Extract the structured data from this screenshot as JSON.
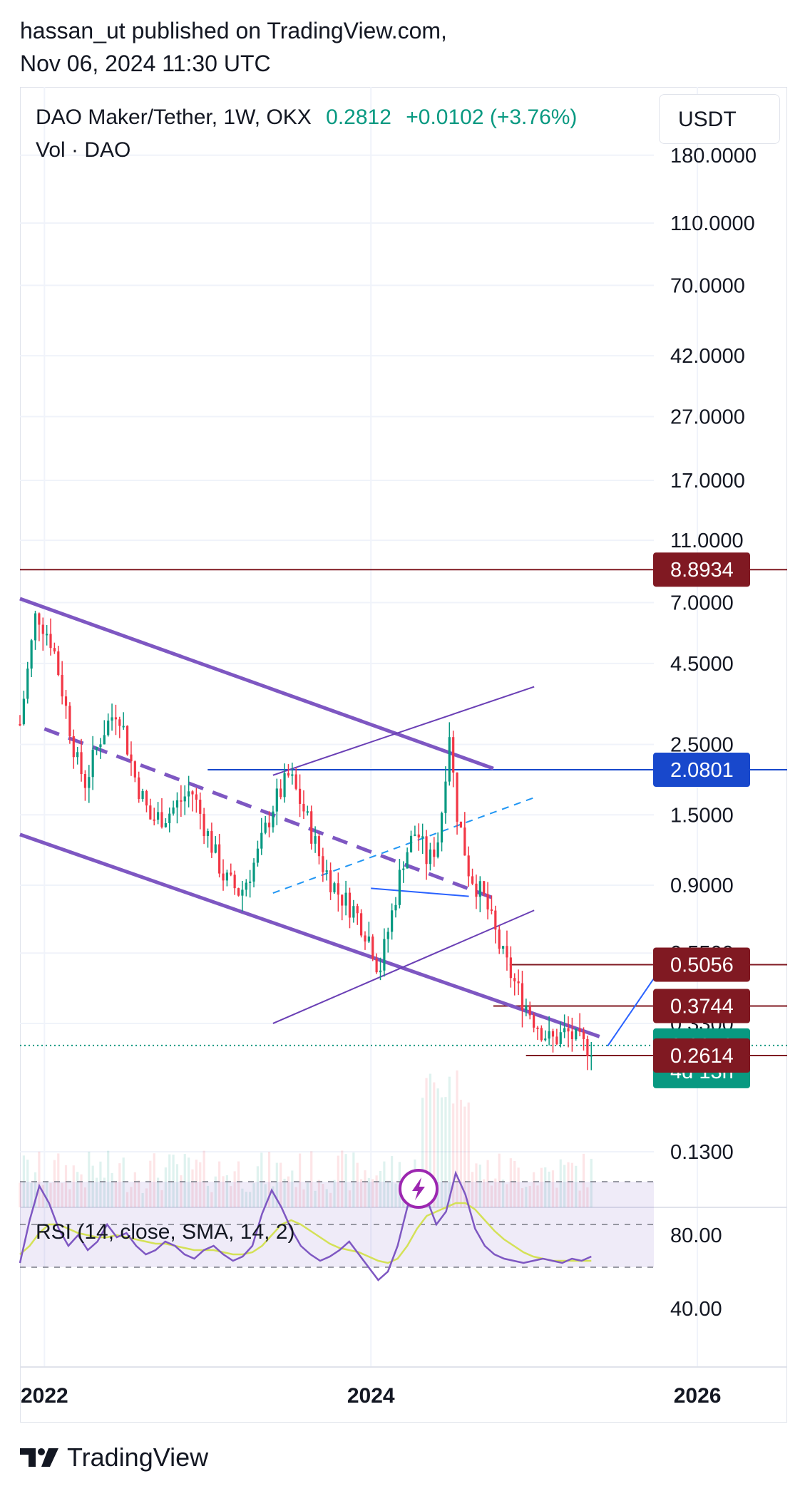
{
  "publisher": {
    "line1": "hassan_ut published on TradingView.com,",
    "line2": "Nov 06, 2024 11:30 UTC"
  },
  "legend": {
    "symbol": "DAO Maker/Tether, 1W, OKX",
    "price": "0.2812",
    "change": "+0.0102 (+3.76%)",
    "vol": "Vol · DAO"
  },
  "currency_button": "USDT",
  "rsi": {
    "title": "RSI (14, close, SMA, 14, 2)"
  },
  "footer": {
    "brand": "TradingView"
  },
  "colors": {
    "up": "#089981",
    "down": "#f23645",
    "resistance": "#801922",
    "support_blue": "#1848cc",
    "channel": "#7e57c2",
    "rsi_line": "#7e57c2",
    "rsi_sma": "#d4e157"
  },
  "icons": [
    "tradingview-logo-icon",
    "lightning-icon"
  ],
  "chart_data": {
    "type": "candlestick",
    "title": "DAO Maker/Tether, 1W, OKX",
    "scale": "log",
    "y_ticks": [
      "180.0000",
      "110.0000",
      "70.0000",
      "42.0000",
      "27.0000",
      "17.0000",
      "11.0000",
      "7.0000",
      "4.5000",
      "2.5000",
      "1.5000",
      "0.9000",
      "0.5500",
      "0.3300",
      "0.1300"
    ],
    "x_ticks": [
      "2022",
      "2024",
      "2026"
    ],
    "x_range": [
      2021.85,
      2026.55
    ],
    "price_labels": [
      {
        "value": "8.8934",
        "kind": "resistance"
      },
      {
        "value": "2.0801",
        "kind": "support"
      },
      {
        "value": "0.5056",
        "kind": "resistance"
      },
      {
        "value": "0.3744",
        "kind": "resistance"
      },
      {
        "value": "0.2812",
        "kind": "last",
        "countdown": "4d 13h"
      },
      {
        "value": "0.2614",
        "kind": "resistance"
      }
    ],
    "price_path": [
      [
        2021.85,
        2.9
      ],
      [
        2021.95,
        6.6
      ],
      [
        2022.05,
        5.2
      ],
      [
        2022.1,
        3.9
      ],
      [
        2022.2,
        2.2
      ],
      [
        2022.25,
        1.9
      ],
      [
        2022.35,
        2.7
      ],
      [
        2022.45,
        3.3
      ],
      [
        2022.55,
        2.0
      ],
      [
        2022.65,
        1.45
      ],
      [
        2022.75,
        1.5
      ],
      [
        2022.9,
        1.8
      ],
      [
        2023.0,
        1.3
      ],
      [
        2023.1,
        0.95
      ],
      [
        2023.2,
        0.85
      ],
      [
        2023.3,
        1.1
      ],
      [
        2023.4,
        1.6
      ],
      [
        2023.5,
        2.0
      ],
      [
        2023.6,
        1.5
      ],
      [
        2023.7,
        1.05
      ],
      [
        2023.8,
        0.85
      ],
      [
        2023.9,
        0.75
      ],
      [
        2024.0,
        0.6
      ],
      [
        2024.05,
        0.48
      ],
      [
        2024.12,
        0.7
      ],
      [
        2024.2,
        1.1
      ],
      [
        2024.28,
        1.35
      ],
      [
        2024.35,
        1.05
      ],
      [
        2024.42,
        1.3
      ],
      [
        2024.48,
        2.8
      ],
      [
        2024.52,
        1.6
      ],
      [
        2024.6,
        1.0
      ],
      [
        2024.7,
        0.8
      ],
      [
        2024.8,
        0.55
      ],
      [
        2024.9,
        0.42
      ],
      [
        2025.0,
        0.34
      ],
      [
        2025.1,
        0.29
      ],
      [
        2025.2,
        0.31
      ],
      [
        2025.3,
        0.28
      ],
      [
        2025.35,
        0.2812
      ]
    ],
    "rsi_levels": [
      "80.00",
      "40.00"
    ],
    "rsi_band": [
      30,
      70
    ],
    "rsi_values": [
      32,
      52,
      68,
      60,
      48,
      40,
      45,
      38,
      42,
      50,
      44,
      46,
      40,
      36,
      38,
      42,
      40,
      36,
      34,
      38,
      40,
      36,
      33,
      35,
      40,
      55,
      66,
      58,
      48,
      40,
      36,
      33,
      35,
      38,
      42,
      36,
      30,
      24,
      28,
      40,
      58,
      70,
      62,
      50,
      56,
      74,
      64,
      48,
      40,
      36,
      34,
      33,
      32,
      33,
      34,
      33,
      32,
      34,
      33,
      35
    ],
    "rsi_sma_values": [
      36,
      40,
      46,
      50,
      50,
      48,
      46,
      45,
      44,
      44,
      45,
      44,
      43,
      42,
      41,
      41,
      40,
      39,
      38,
      38,
      38,
      37,
      36,
      36,
      37,
      40,
      45,
      50,
      52,
      50,
      47,
      44,
      41,
      39,
      38,
      37,
      35,
      33,
      32,
      34,
      40,
      48,
      54,
      56,
      58,
      60,
      60,
      57,
      52,
      47,
      43,
      40,
      37,
      35,
      34,
      33,
      33,
      33,
      33,
      33
    ]
  }
}
